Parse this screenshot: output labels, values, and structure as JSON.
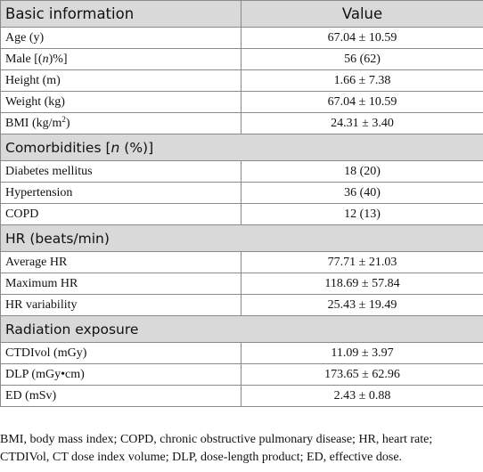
{
  "header": {
    "col1": "Basic information",
    "col2": "Value"
  },
  "basic": {
    "rows": [
      {
        "label": "Age (y)",
        "value": "67.04 ± 10.59"
      },
      {
        "label_pre": "Male [(",
        "label_italic": "n",
        "label_post": ")%]",
        "value": "56 (62)"
      },
      {
        "label": "Height (m)",
        "value": "1.66 ± 7.38"
      },
      {
        "label": "Weight (kg)",
        "value": "67.04 ± 10.59"
      },
      {
        "label_pre": "BMI (kg/m",
        "label_sup": "2",
        "label_post": ")",
        "value": "24.31 ± 3.40"
      }
    ]
  },
  "comorbidities": {
    "title_pre": "Comorbidities [",
    "title_italic": "n",
    "title_post": " (%)]",
    "rows": [
      {
        "label": "Diabetes mellitus",
        "value": "18 (20)"
      },
      {
        "label": "Hypertension",
        "value": "36 (40)"
      },
      {
        "label": "COPD",
        "value": "12 (13)"
      }
    ]
  },
  "hr": {
    "title": "HR (beats/min)",
    "rows": [
      {
        "label": "Average HR",
        "value": "77.71 ± 21.03"
      },
      {
        "label": "Maximum HR",
        "value": "118.69 ± 57.84"
      },
      {
        "label": "HR variability",
        "value": "25.43 ± 19.49"
      }
    ]
  },
  "radiation": {
    "title": "Radiation exposure",
    "rows": [
      {
        "label": "CTDIvol (mGy)",
        "value": "11.09 ± 3.97"
      },
      {
        "label": "DLP (mGy•cm)",
        "value": "173.65 ± 62.96"
      },
      {
        "label": "ED (mSv)",
        "value": "2.43 ± 0.88"
      }
    ]
  },
  "footnote": {
    "line1": "BMI, body mass index; COPD, chronic obstructive pulmonary disease; HR, heart rate;",
    "line2": "CTDIVol, CT dose index volume; DLP, dose-length product; ED, effective dose."
  },
  "colors": {
    "header_bg": "#d9d9d9",
    "border": "#8a8a8a"
  }
}
